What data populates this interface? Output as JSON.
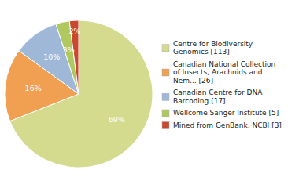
{
  "chart_data": {
    "type": "pie",
    "categories": [
      "Centre for Biodiversity\nGenomics [113]",
      "Canadian National Collection\nof Insects, Arachnids and\nNem... [26]",
      "Canadian Centre for DNA\nBarcoding [17]",
      "Wellcome Sanger Institute [5]",
      "Mined from GenBank, NCBI [3]"
    ],
    "values": [
      69,
      16,
      10,
      3,
      2
    ],
    "value_labels": [
      "69%",
      "16%",
      "10%",
      "3%",
      "2%"
    ],
    "colors": [
      "#d4db8e",
      "#f0a050",
      "#a0b8d8",
      "#b0c860",
      "#c84830"
    ],
    "data_labels": true,
    "legend": "right"
  }
}
